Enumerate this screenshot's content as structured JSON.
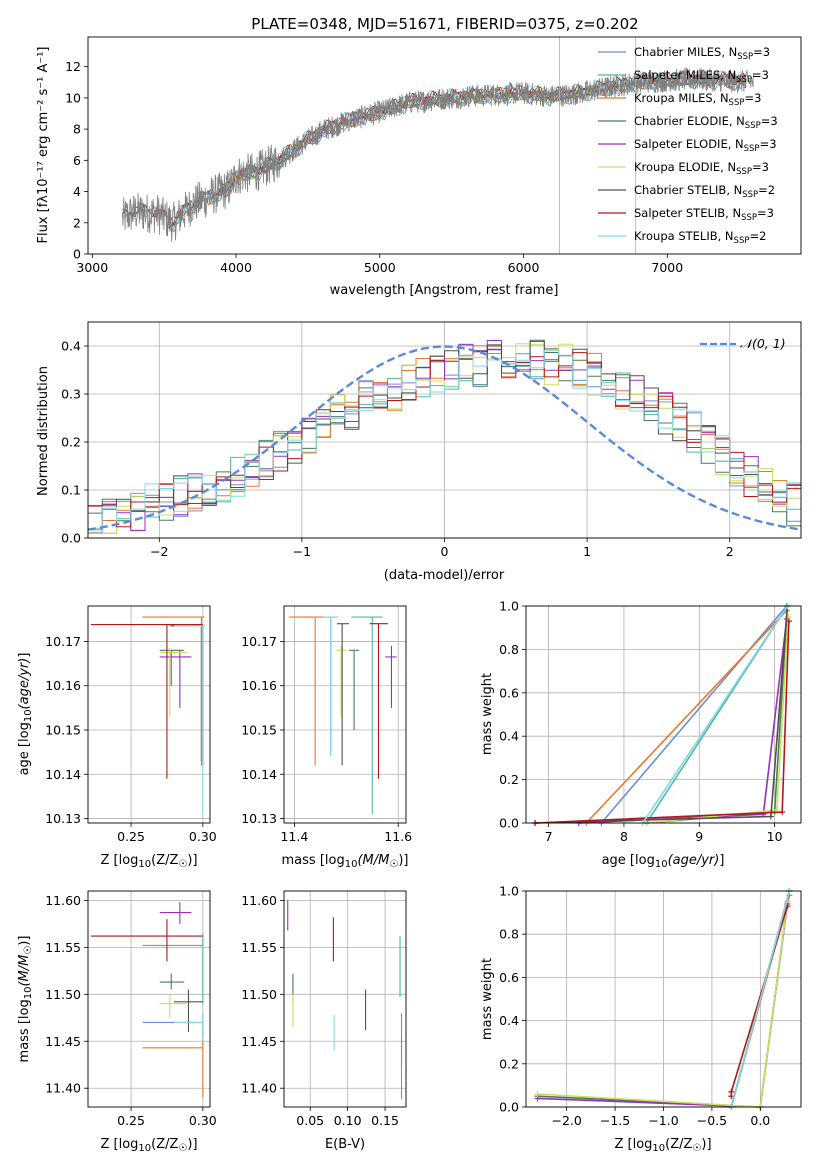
{
  "figure_title": "PLATE=0348, MJD=51671, FIBERID=0375, z=0.202",
  "colors": {
    "Chabrier MILES": "#6a8fd8",
    "Salpeter MILES": "#50b8a0",
    "Kroupa MILES": "#e8762a",
    "Chabrier ELODIE": "#4a7d55",
    "Salpeter ELODIE": "#9a2fbf",
    "Kroupa ELODIE": "#c8e05a",
    "Chabrier STELIB": "#505050",
    "Salpeter STELIB": "#b01818",
    "Kroupa STELIB": "#80d8e6",
    "data": "#808080",
    "normal": "#5b8ad8"
  },
  "chart_data": [
    {
      "type": "line",
      "name": "spectrum",
      "title": "PLATE=0348, MJD=51671, FIBERID=0375, z=0.202",
      "xlabel": "wavelength [Angstrom, rest frame]",
      "ylabel": "Flux [f",
      "xlim": [
        2970,
        7930
      ],
      "ylim": [
        0,
        13.9
      ],
      "xticks": [
        "3000",
        "4000",
        "5000",
        "6000",
        "7000"
      ],
      "yticks": [
        "0",
        "2",
        "4",
        "6",
        "8",
        "10",
        "12"
      ],
      "grid": false,
      "legend_position": "top-right",
      "legend": [
        {
          "series": "Chabrier MILES",
          "text": "Chabrier MILES, N",
          "n": "=3"
        },
        {
          "series": "Salpeter MILES",
          "text": "Salpeter MILES, N",
          "n": "=3"
        },
        {
          "series": "Kroupa MILES",
          "text": "Kroupa MILES, N",
          "n": "=3"
        },
        {
          "series": "Chabrier ELODIE",
          "text": "Chabrier ELODIE, N",
          "n": "=3"
        },
        {
          "series": "Salpeter ELODIE",
          "text": "Salpeter ELODIE, N",
          "n": "=3"
        },
        {
          "series": "Kroupa ELODIE",
          "text": "Kroupa ELODIE, N",
          "n": "=3"
        },
        {
          "series": "Chabrier STELIB",
          "text": "Chabrier STELIB, N",
          "n": "=2"
        },
        {
          "series": "Salpeter STELIB",
          "text": "Salpeter STELIB, N",
          "n": "=3"
        },
        {
          "series": "Kroupa STELIB",
          "text": "Kroupa STELIB, N",
          "n": "=2"
        }
      ],
      "continuum": {
        "x": [
          3210,
          3300,
          3450,
          3560,
          3700,
          3850,
          3950,
          4000,
          4150,
          4300,
          4450,
          4600,
          4800,
          5000,
          5200,
          5400,
          5600,
          5800,
          6000,
          6200,
          6400,
          6600,
          6800,
          7000,
          7200,
          7400,
          7600
        ],
        "y": [
          2.3,
          2.7,
          2.6,
          2.0,
          3.2,
          3.8,
          4.2,
          5.0,
          5.3,
          6.0,
          7.0,
          7.9,
          8.6,
          9.1,
          9.7,
          9.9,
          10.1,
          10.2,
          10.3,
          10.1,
          10.3,
          10.7,
          11.0,
          11.1,
          11.2,
          11.1,
          11.0
        ]
      }
    },
    {
      "type": "line",
      "name": "residual-histogram",
      "xlabel": "(data-model)/error",
      "ylabel": "Normed distribution",
      "xlim": [
        -2.5,
        2.5
      ],
      "ylim": [
        0,
        0.45
      ],
      "xticks": [
        "−2",
        "−1",
        "0",
        "1",
        "2"
      ],
      "yticks": [
        "0.0",
        "0.1",
        "0.2",
        "0.3",
        "0.4"
      ],
      "grid": true,
      "legend_position": "top-right",
      "legend_label": "𝒩(0, 1)",
      "bin_width": 0.1,
      "mean_profile": [
        0.03,
        0.04,
        0.05,
        0.06,
        0.07,
        0.08,
        0.09,
        0.1,
        0.11,
        0.12,
        0.13,
        0.14,
        0.16,
        0.18,
        0.2,
        0.22,
        0.24,
        0.26,
        0.27,
        0.29,
        0.3,
        0.31,
        0.32,
        0.33,
        0.34,
        0.35,
        0.36,
        0.36,
        0.37,
        0.37,
        0.37,
        0.37,
        0.36,
        0.36,
        0.35,
        0.34,
        0.33,
        0.31,
        0.3,
        0.28,
        0.26,
        0.24,
        0.22,
        0.2,
        0.17,
        0.15,
        0.13,
        0.11,
        0.09,
        0.07
      ]
    },
    {
      "type": "scatter",
      "name": "age-vs-Z",
      "xlabel": "Z [log",
      "ylabel": "age  [log",
      "xlim": [
        0.22,
        0.305
      ],
      "ylim": [
        10.129,
        10.178
      ],
      "xticks": [
        "0.25",
        "0.30"
      ],
      "yticks": [
        "10.13",
        "10.14",
        "10.15",
        "10.16",
        "10.17"
      ],
      "grid": true,
      "points": [
        {
          "series": "Chabrier MILES",
          "x": 0.299,
          "y": 10.1735,
          "xlo": 0.277,
          "xhi": 0.301,
          "ylo": 10.143,
          "yhi": 10.1735
        },
        {
          "series": "Salpeter MILES",
          "x": 0.299,
          "y": 10.1735,
          "xlo": 0.277,
          "xhi": 0.301,
          "ylo": 10.143,
          "yhi": 10.1735
        },
        {
          "series": "Kroupa MILES",
          "x": 0.299,
          "y": 10.1755,
          "xlo": 0.258,
          "xhi": 0.301,
          "ylo": 10.142,
          "yhi": 10.1755
        },
        {
          "series": "Chabrier ELODIE",
          "x": 0.278,
          "y": 10.168,
          "xlo": 0.27,
          "xhi": 0.287,
          "ylo": 10.16,
          "yhi": 10.168
        },
        {
          "series": "Salpeter ELODIE",
          "x": 0.284,
          "y": 10.1665,
          "xlo": 0.27,
          "xhi": 0.292,
          "ylo": 10.155,
          "yhi": 10.168
        },
        {
          "series": "Kroupa ELODIE",
          "x": 0.277,
          "y": 10.1675,
          "xlo": 0.27,
          "xhi": 0.289,
          "ylo": 10.153,
          "yhi": 10.1685
        },
        {
          "series": "Chabrier STELIB",
          "x": 0.3,
          "y": 10.1735,
          "xlo": 0.278,
          "xhi": 0.3,
          "ylo": 10.142,
          "yhi": 10.1735
        },
        {
          "series": "Salpeter STELIB",
          "x": 0.275,
          "y": 10.1738,
          "xlo": 0.222,
          "xhi": 0.3,
          "ylo": 10.139,
          "yhi": 10.1738
        },
        {
          "series": "Kroupa STELIB",
          "x": 0.3,
          "y": 10.1735,
          "xlo": 0.28,
          "xhi": 0.3,
          "ylo": 10.131,
          "yhi": 10.1735
        }
      ]
    },
    {
      "type": "scatter",
      "name": "age-vs-mass",
      "xlabel": "mass [log",
      "ylabel": "",
      "xlim": [
        11.38,
        11.615
      ],
      "ylim": [
        10.129,
        10.178
      ],
      "xticks": [
        "11.4",
        "11.6"
      ],
      "yticks": [
        "10.13",
        "10.14",
        "10.15",
        "10.16",
        "10.17"
      ],
      "grid": true,
      "points": [
        {
          "series": "Chabrier MILES",
          "x": 11.47,
          "y": 10.1755,
          "xlo": 11.46,
          "xhi": 11.48,
          "ylo": 10.145,
          "yhi": 10.1755
        },
        {
          "series": "Salpeter MILES",
          "x": 11.55,
          "y": 10.1755,
          "xlo": 11.51,
          "xhi": 11.57,
          "ylo": 10.131,
          "yhi": 10.1755
        },
        {
          "series": "Kroupa MILES",
          "x": 11.44,
          "y": 10.1755,
          "xlo": 11.39,
          "xhi": 11.46,
          "ylo": 10.142,
          "yhi": 10.1755
        },
        {
          "series": "Chabrier ELODIE",
          "x": 11.515,
          "y": 10.168,
          "xlo": 11.505,
          "xhi": 11.525,
          "ylo": 10.15,
          "yhi": 10.168
        },
        {
          "series": "Salpeter ELODIE",
          "x": 11.587,
          "y": 10.1665,
          "xlo": 11.575,
          "xhi": 11.597,
          "ylo": 10.155,
          "yhi": 10.169
        },
        {
          "series": "Kroupa ELODIE",
          "x": 11.49,
          "y": 10.168,
          "xlo": 11.48,
          "xhi": 11.5,
          "ylo": 10.153,
          "yhi": 10.169
        },
        {
          "series": "Chabrier STELIB",
          "x": 11.492,
          "y": 10.174,
          "xlo": 11.482,
          "xhi": 11.505,
          "ylo": 10.142,
          "yhi": 10.174
        },
        {
          "series": "Salpeter STELIB",
          "x": 11.562,
          "y": 10.174,
          "xlo": 11.545,
          "xhi": 11.58,
          "ylo": 10.139,
          "yhi": 10.174
        },
        {
          "series": "Kroupa STELIB",
          "x": 11.47,
          "y": 10.1755,
          "xlo": 11.455,
          "xhi": 11.485,
          "ylo": 10.144,
          "yhi": 10.1755
        }
      ]
    },
    {
      "type": "line",
      "name": "weight-vs-age",
      "xlabel": "age  [log",
      "ylabel": "mass weight",
      "xlim": [
        6.7,
        10.35
      ],
      "ylim": [
        0,
        1
      ],
      "xticks": [
        "7",
        "8",
        "9",
        "10"
      ],
      "yticks": [
        "0.0",
        "0.2",
        "0.4",
        "0.6",
        "0.8",
        "1.0"
      ],
      "grid": true,
      "series": [
        {
          "series": "Chabrier MILES",
          "x": [
            7.7,
            10.16
          ],
          "y": [
            0.0,
            1.0
          ]
        },
        {
          "series": "Salpeter MILES",
          "x": [
            8.3,
            10.17
          ],
          "y": [
            0.0,
            1.0
          ]
        },
        {
          "series": "Kroupa MILES",
          "x": [
            7.5,
            10.16
          ],
          "y": [
            0.0,
            0.98
          ]
        },
        {
          "series": "Chabrier ELODIE",
          "x": [
            8.3,
            10.0,
            10.17
          ],
          "y": [
            0.0,
            0.05,
            1.0
          ]
        },
        {
          "series": "Salpeter ELODIE",
          "x": [
            7.4,
            9.85,
            10.16
          ],
          "y": [
            0.0,
            0.04,
            0.94
          ]
        },
        {
          "series": "Kroupa ELODIE",
          "x": [
            8.3,
            10.03,
            10.18
          ],
          "y": [
            0.0,
            0.06,
            0.95
          ]
        },
        {
          "series": "Chabrier STELIB",
          "x": [
            6.82,
            9.95,
            10.17
          ],
          "y": [
            0.0,
            0.03,
            1.0
          ]
        },
        {
          "series": "Salpeter STELIB",
          "x": [
            6.82,
            10.1,
            10.19
          ],
          "y": [
            0.0,
            0.05,
            0.93
          ]
        },
        {
          "series": "Kroupa STELIB",
          "x": [
            8.25,
            10.17
          ],
          "y": [
            0.0,
            1.0
          ]
        }
      ]
    },
    {
      "type": "scatter",
      "name": "mass-vs-Z",
      "xlabel": "Z [log",
      "ylabel": "mass [log",
      "xlim": [
        0.22,
        0.305
      ],
      "ylim": [
        11.38,
        11.61
      ],
      "xticks": [
        "0.25",
        "0.30"
      ],
      "yticks": [
        "11.40",
        "11.45",
        "11.50",
        "11.55",
        "11.60"
      ],
      "grid": true,
      "points": [
        {
          "series": "Chabrier MILES",
          "x": 0.3,
          "y": 11.47,
          "xlo": 0.258,
          "xhi": 0.3,
          "ylo": 11.455,
          "yhi": 11.48
        },
        {
          "series": "Salpeter MILES",
          "x": 0.3,
          "y": 11.552,
          "xlo": 0.258,
          "xhi": 0.3,
          "ylo": 11.49,
          "yhi": 11.565
        },
        {
          "series": "Kroupa MILES",
          "x": 0.3,
          "y": 11.443,
          "xlo": 0.258,
          "xhi": 0.3,
          "ylo": 11.39,
          "yhi": 11.46
        },
        {
          "series": "Chabrier ELODIE",
          "x": 0.278,
          "y": 11.513,
          "xlo": 0.27,
          "xhi": 0.287,
          "ylo": 11.505,
          "yhi": 11.522
        },
        {
          "series": "Salpeter ELODIE",
          "x": 0.284,
          "y": 11.587,
          "xlo": 0.27,
          "xhi": 0.292,
          "ylo": 11.575,
          "yhi": 11.598
        },
        {
          "series": "Kroupa ELODIE",
          "x": 0.277,
          "y": 11.49,
          "xlo": 0.27,
          "xhi": 0.289,
          "ylo": 11.475,
          "yhi": 11.5
        },
        {
          "series": "Chabrier STELIB",
          "x": 0.29,
          "y": 11.492,
          "xlo": 0.28,
          "xhi": 0.3,
          "ylo": 11.46,
          "yhi": 11.505
        },
        {
          "series": "Salpeter STELIB",
          "x": 0.275,
          "y": 11.562,
          "xlo": 0.222,
          "xhi": 0.3,
          "ylo": 11.535,
          "yhi": 11.58
        },
        {
          "series": "Kroupa STELIB",
          "x": 0.3,
          "y": 11.47,
          "xlo": 0.28,
          "xhi": 0.3,
          "ylo": 11.45,
          "yhi": 11.48
        }
      ]
    },
    {
      "type": "scatter",
      "name": "mass-vs-EBV",
      "xlabel": "E(B-V)",
      "ylabel": "",
      "xlim": [
        0.015,
        0.178
      ],
      "ylim": [
        11.38,
        11.61
      ],
      "xticks": [
        "0.05",
        "0.10",
        "0.15"
      ],
      "yticks": [
        "11.40",
        "11.45",
        "11.50",
        "11.55",
        "11.60"
      ],
      "grid": true,
      "points": [
        {
          "series": "Chabrier MILES",
          "x": 0.172,
          "y": 11.455,
          "ylo": 11.423,
          "yhi": 11.48
        },
        {
          "series": "Salpeter MILES",
          "x": 0.17,
          "y": 11.535,
          "ylo": 11.497,
          "yhi": 11.562
        },
        {
          "series": "Kroupa MILES",
          "x": 0.172,
          "y": 11.42,
          "ylo": 11.388,
          "yhi": 11.455
        },
        {
          "series": "Chabrier ELODIE",
          "x": 0.027,
          "y": 11.507,
          "ylo": 11.492,
          "yhi": 11.522
        },
        {
          "series": "Salpeter ELODIE",
          "x": 0.02,
          "y": 11.585,
          "ylo": 11.568,
          "yhi": 11.6
        },
        {
          "series": "Kroupa ELODIE",
          "x": 0.027,
          "y": 11.483,
          "ylo": 11.465,
          "yhi": 11.5
        },
        {
          "series": "Chabrier STELIB",
          "x": 0.124,
          "y": 11.485,
          "ylo": 11.462,
          "yhi": 11.505
        },
        {
          "series": "Salpeter STELIB",
          "x": 0.081,
          "y": 11.557,
          "ylo": 11.535,
          "yhi": 11.582
        },
        {
          "series": "Kroupa STELIB",
          "x": 0.082,
          "y": 11.46,
          "ylo": 11.44,
          "yhi": 11.478
        }
      ]
    },
    {
      "type": "line",
      "name": "weight-vs-Z",
      "xlabel": "Z [log",
      "ylabel": "mass weight",
      "xlim": [
        -2.42,
        0.42
      ],
      "ylim": [
        0,
        1
      ],
      "xticks": [
        "−2.0",
        "−1.5",
        "−1.0",
        "−0.5",
        "0.0"
      ],
      "yticks": [
        "0.0",
        "0.2",
        "0.4",
        "0.6",
        "0.8",
        "1.0"
      ],
      "grid": true,
      "series": [
        {
          "series": "Chabrier MILES",
          "x": [
            -0.3,
            0.3
          ],
          "y": [
            0.0,
            1.0
          ]
        },
        {
          "series": "Salpeter MILES",
          "x": [
            -0.3,
            0.3
          ],
          "y": [
            0.0,
            1.0
          ]
        },
        {
          "series": "Kroupa MILES",
          "x": [
            -0.3,
            0.3
          ],
          "y": [
            0.0,
            0.98
          ]
        },
        {
          "series": "Chabrier ELODIE",
          "x": [
            -2.3,
            0.0,
            0.28
          ],
          "y": [
            0.05,
            0.0,
            0.95
          ]
        },
        {
          "series": "Salpeter ELODIE",
          "x": [
            -2.3,
            0.0,
            0.28
          ],
          "y": [
            0.04,
            0.0,
            0.94
          ]
        },
        {
          "series": "Kroupa ELODIE",
          "x": [
            -2.3,
            0.0,
            0.28
          ],
          "y": [
            0.06,
            0.0,
            0.95
          ]
        },
        {
          "series": "Chabrier STELIB",
          "x": [
            -0.3,
            0.3
          ],
          "y": [
            0.0,
            1.0
          ]
        },
        {
          "series": "Salpeter STELIB",
          "x": [
            -0.3,
            -0.3,
            0.28
          ],
          "y": [
            0.05,
            0.07,
            0.93
          ]
        },
        {
          "series": "Kroupa STELIB",
          "x": [
            -0.3,
            0.3
          ],
          "y": [
            0.0,
            1.0
          ]
        }
      ]
    }
  ]
}
